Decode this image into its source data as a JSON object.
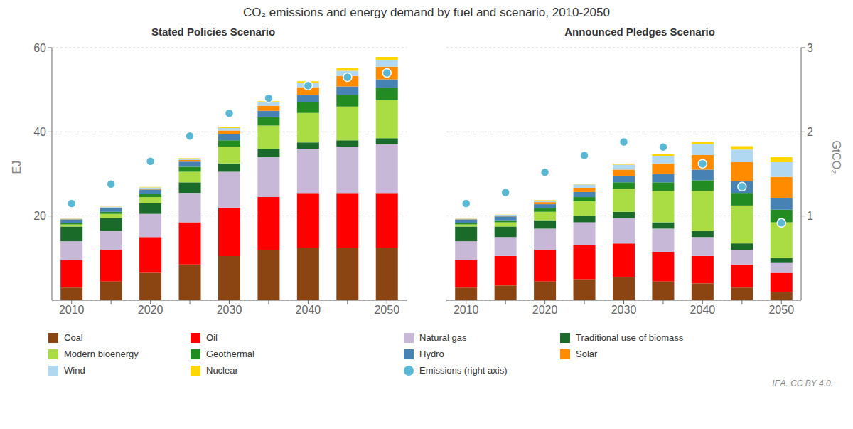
{
  "title": "CO₂ emissions and energy demand by fuel and scenario, 2010-2050",
  "annotations": [
    "IEA. CC BY 4.0."
  ],
  "chart_data": [
    {
      "type": "bar",
      "title": "Stated Policies Scenario",
      "stacked": true,
      "grid": true,
      "legend": "bottom",
      "categories": [
        "2010",
        null,
        "2020",
        null,
        "2030",
        null,
        "2040",
        null,
        "2050"
      ],
      "ylabel": "EJ",
      "ylim": [
        0,
        60
      ],
      "yticks": [
        20,
        40,
        60
      ],
      "y2lim": [
        0,
        3
      ],
      "series": [
        {
          "name": "Coal",
          "type": "bar",
          "color": "#8B4513",
          "values": [
            3.0,
            4.5,
            6.5,
            8.5,
            10.5,
            12.0,
            12.5,
            12.5,
            12.5
          ]
        },
        {
          "name": "Oil",
          "type": "bar",
          "color": "#FF0000",
          "values": [
            6.5,
            7.5,
            8.5,
            10.0,
            11.5,
            12.5,
            13.0,
            13.0,
            13.0
          ]
        },
        {
          "name": "Natural gas",
          "type": "bar",
          "color": "#C8B8D8",
          "values": [
            4.5,
            4.5,
            5.5,
            7.0,
            8.5,
            9.5,
            10.5,
            11.0,
            11.5
          ]
        },
        {
          "name": "Traditional use of biomass",
          "type": "bar",
          "color": "#1A6B2A",
          "values": [
            3.5,
            3.0,
            2.5,
            2.5,
            2.0,
            2.0,
            1.5,
            1.5,
            1.5
          ]
        },
        {
          "name": "Modern bioenergy",
          "type": "bar",
          "color": "#AADD44",
          "values": [
            0.5,
            1.0,
            1.5,
            2.5,
            4.0,
            5.5,
            7.0,
            8.0,
            9.0
          ]
        },
        {
          "name": "Geothermal",
          "type": "bar",
          "color": "#228B22",
          "values": [
            0.4,
            0.5,
            0.8,
            1.2,
            1.5,
            2.0,
            2.5,
            2.8,
            3.0
          ]
        },
        {
          "name": "Hydro",
          "type": "bar",
          "color": "#4682B4",
          "values": [
            0.8,
            0.9,
            1.0,
            1.2,
            1.5,
            1.5,
            1.8,
            2.0,
            2.0
          ]
        },
        {
          "name": "Solar",
          "type": "bar",
          "color": "#FF8C00",
          "values": [
            0.05,
            0.1,
            0.2,
            0.4,
            0.8,
            1.2,
            1.8,
            2.5,
            3.0
          ]
        },
        {
          "name": "Wind",
          "type": "bar",
          "color": "#B0D8F0",
          "values": [
            0.1,
            0.2,
            0.3,
            0.4,
            0.6,
            0.8,
            1.0,
            1.2,
            1.5
          ]
        },
        {
          "name": "Nuclear",
          "type": "bar",
          "color": "#FFD700",
          "values": [
            0.05,
            0.05,
            0.1,
            0.1,
            0.2,
            0.3,
            0.4,
            0.6,
            0.8
          ]
        },
        {
          "name": "Emissions (right axis)",
          "type": "scatter",
          "marker": "circle",
          "line_style": "none",
          "axis": "y2",
          "color": "#5BB8D4",
          "values": [
            1.15,
            1.38,
            1.65,
            1.95,
            2.22,
            2.4,
            2.55,
            2.65,
            2.7
          ]
        }
      ]
    },
    {
      "type": "bar",
      "title": "Announced Pledges Scenario",
      "stacked": true,
      "grid": true,
      "categories": [
        "2010",
        null,
        "2020",
        null,
        "2030",
        null,
        "2040",
        null,
        "2050"
      ],
      "ylim": [
        0,
        60
      ],
      "y2label": "GtCO₂",
      "y2lim": [
        0,
        3
      ],
      "y2ticks": [
        1,
        2,
        3
      ],
      "series": [
        {
          "name": "Coal",
          "type": "bar",
          "color": "#8B4513",
          "values": [
            3.0,
            3.5,
            4.5,
            5.0,
            5.5,
            4.5,
            4.0,
            3.0,
            2.0
          ]
        },
        {
          "name": "Oil",
          "type": "bar",
          "color": "#FF0000",
          "values": [
            6.5,
            7.0,
            7.5,
            8.0,
            8.0,
            7.0,
            6.5,
            5.5,
            4.5
          ]
        },
        {
          "name": "Natural gas",
          "type": "bar",
          "color": "#C8B8D8",
          "values": [
            4.5,
            4.5,
            5.0,
            5.5,
            6.0,
            5.5,
            4.5,
            3.5,
            2.5
          ]
        },
        {
          "name": "Traditional use of biomass",
          "type": "bar",
          "color": "#1A6B2A",
          "values": [
            3.5,
            2.5,
            2.0,
            1.5,
            1.5,
            1.5,
            1.5,
            1.5,
            1.0
          ]
        },
        {
          "name": "Modern bioenergy",
          "type": "bar",
          "color": "#AADD44",
          "values": [
            0.5,
            1.0,
            2.0,
            3.5,
            5.5,
            7.5,
            9.5,
            9.0,
            8.5
          ]
        },
        {
          "name": "Geothermal",
          "type": "bar",
          "color": "#228B22",
          "values": [
            0.4,
            0.5,
            0.8,
            1.0,
            1.5,
            2.0,
            2.5,
            3.0,
            3.0
          ]
        },
        {
          "name": "Hydro",
          "type": "bar",
          "color": "#4682B4",
          "values": [
            0.8,
            0.9,
            1.0,
            1.2,
            1.5,
            2.0,
            2.5,
            2.8,
            2.8
          ]
        },
        {
          "name": "Solar",
          "type": "bar",
          "color": "#FF8C00",
          "values": [
            0.05,
            0.2,
            0.5,
            1.0,
            1.5,
            2.5,
            3.5,
            4.5,
            5.0
          ]
        },
        {
          "name": "Wind",
          "type": "bar",
          "color": "#B0D8F0",
          "values": [
            0.1,
            0.2,
            0.4,
            0.8,
            1.2,
            1.8,
            2.5,
            3.0,
            3.5
          ]
        },
        {
          "name": "Nuclear",
          "type": "bar",
          "color": "#FFD700",
          "values": [
            0.05,
            0.05,
            0.1,
            0.1,
            0.2,
            0.4,
            0.6,
            0.8,
            1.2
          ]
        },
        {
          "name": "Emissions (right axis)",
          "type": "scatter",
          "marker": "circle",
          "line_style": "none",
          "axis": "y2",
          "color": "#5BB8D4",
          "values": [
            1.15,
            1.28,
            1.52,
            1.72,
            1.88,
            1.82,
            1.62,
            1.35,
            0.92
          ]
        }
      ]
    }
  ]
}
